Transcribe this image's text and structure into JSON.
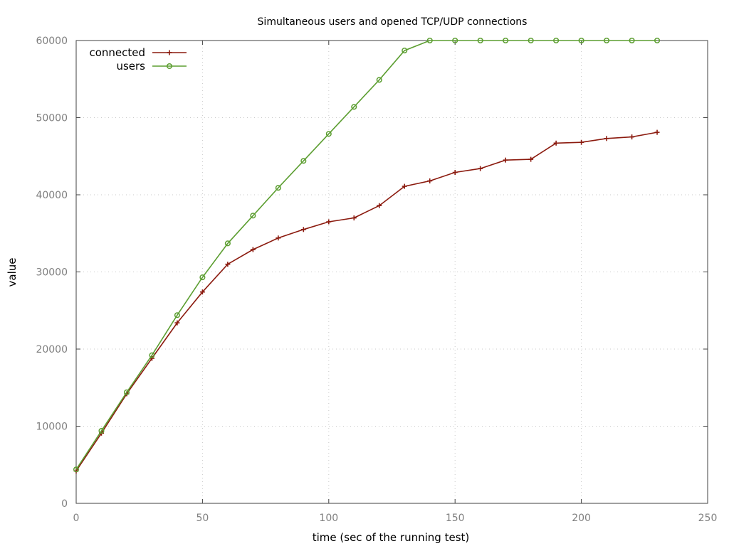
{
  "chart_data": {
    "type": "line",
    "title": "Simultaneous users and opened TCP/UDP connections",
    "xlabel": "time (sec of the running test)",
    "ylabel": "value",
    "xlim": [
      0,
      250
    ],
    "ylim": [
      0,
      60000
    ],
    "xticks": [
      0,
      50,
      100,
      150,
      200,
      250
    ],
    "yticks": [
      0,
      10000,
      20000,
      30000,
      40000,
      50000,
      60000
    ],
    "grid": true,
    "legend_position": "top-left",
    "x": [
      0,
      10,
      20,
      30,
      40,
      50,
      60,
      70,
      80,
      90,
      100,
      110,
      120,
      130,
      140,
      150,
      160,
      170,
      180,
      190,
      200,
      210,
      220,
      230
    ],
    "series": [
      {
        "name": "connected",
        "color": "#8b1a0e",
        "marker": "plus",
        "values": [
          4200,
          9100,
          14200,
          18800,
          23400,
          27400,
          31000,
          32900,
          34400,
          35500,
          36500,
          37000,
          38600,
          41100,
          41800,
          42900,
          43400,
          44500,
          44600,
          46700,
          46800,
          47300,
          47500,
          48100
        ]
      },
      {
        "name": "users",
        "color": "#5c9e31",
        "marker": "circle",
        "values": [
          4400,
          9400,
          14400,
          19200,
          24400,
          29300,
          33700,
          37300,
          40900,
          44400,
          47900,
          51400,
          54900,
          58700,
          60000,
          60000,
          60000,
          60000,
          60000,
          60000,
          60000,
          60000,
          60000,
          60000
        ]
      }
    ]
  }
}
